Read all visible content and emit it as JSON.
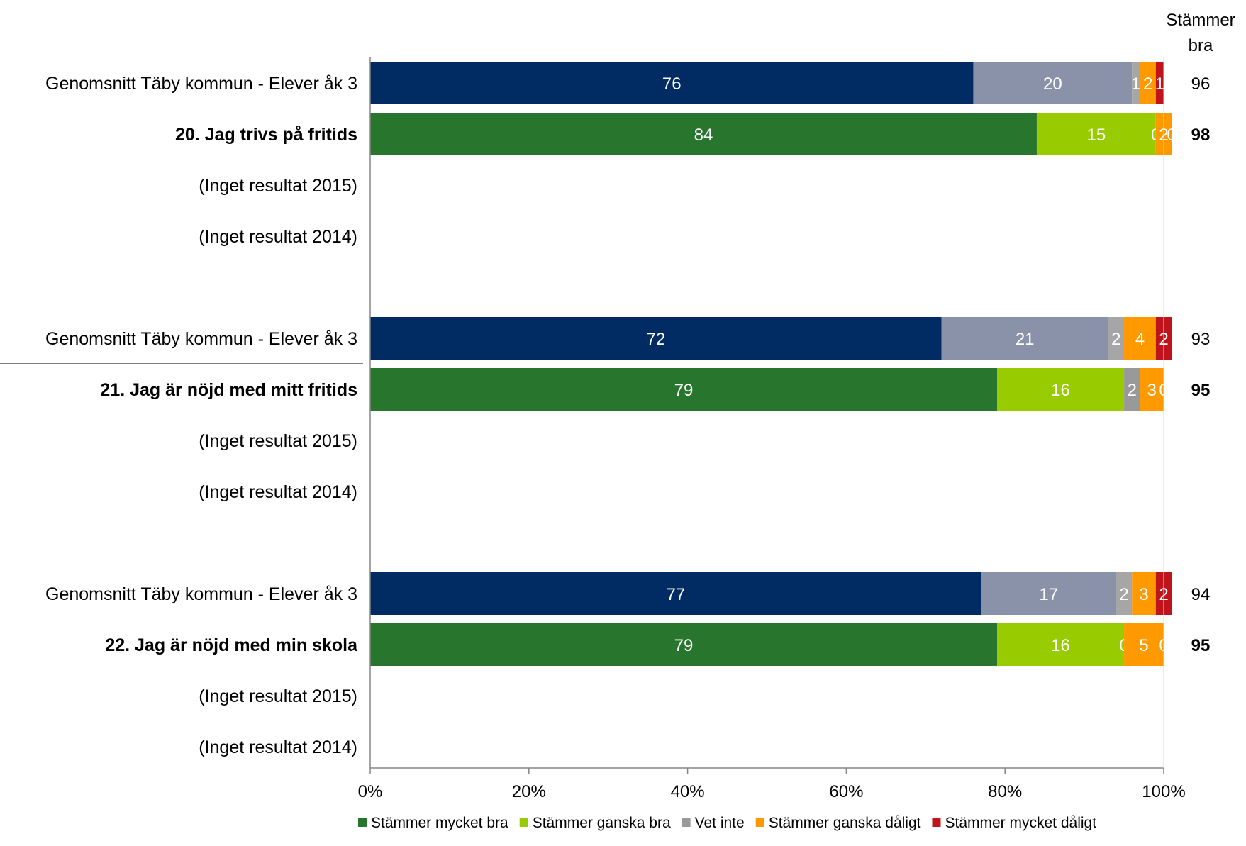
{
  "chart_data": {
    "type": "bar",
    "orientation": "horizontal",
    "stacked": true,
    "xlim": [
      0,
      100
    ],
    "x_ticks": [
      "0%",
      "20%",
      "40%",
      "60%",
      "80%",
      "100%"
    ],
    "sum_header": [
      "Stämmer",
      "bra"
    ],
    "legend": {
      "position": "bottom",
      "entries": [
        {
          "name": "Stämmer mycket bra",
          "color": "#28752d"
        },
        {
          "name": "Stämmer ganska bra",
          "color": "#99cc00"
        },
        {
          "name": "Vet inte",
          "color": "#999999"
        },
        {
          "name": "Stämmer ganska dåligt",
          "color": "#ff9900"
        },
        {
          "name": "Stämmer mycket dåligt",
          "color": "#c0141c"
        }
      ]
    },
    "groups": [
      {
        "rows": [
          {
            "label": "Genomsnitt Täby kommun - Elever åk 3",
            "bold": false,
            "style": "average",
            "values": [
              76,
              20,
              1,
              2,
              1
            ],
            "labels": [
              "76",
              "20",
              "1",
              "2",
              "1"
            ],
            "sum": "96"
          },
          {
            "label": "20. Jag trivs på fritids",
            "bold": true,
            "style": "school",
            "values": [
              84,
              15,
              0,
              2,
              0
            ],
            "labels": [
              "84",
              "15",
              "0",
              "2",
              "0"
            ],
            "sum": "98"
          },
          {
            "label": "(Inget resultat 2015)",
            "bold": false,
            "style": "none",
            "values": [],
            "labels": [],
            "sum": ""
          },
          {
            "label": "(Inget resultat 2014)",
            "bold": false,
            "style": "none",
            "values": [],
            "labels": [],
            "sum": ""
          }
        ]
      },
      {
        "rows": [
          {
            "label": "Genomsnitt Täby kommun - Elever åk 3",
            "bold": false,
            "style": "average",
            "values": [
              72,
              21,
              2,
              4,
              2
            ],
            "labels": [
              "72",
              "21",
              "2",
              "4",
              "2"
            ],
            "sum": "93"
          },
          {
            "label": "21. Jag är nöjd med mitt fritids",
            "bold": true,
            "style": "school",
            "values": [
              79,
              16,
              2,
              3,
              0
            ],
            "labels": [
              "79",
              "16",
              "2",
              "3",
              "0"
            ],
            "sum": "95"
          },
          {
            "label": "(Inget resultat 2015)",
            "bold": false,
            "style": "none",
            "values": [],
            "labels": [],
            "sum": ""
          },
          {
            "label": "(Inget resultat 2014)",
            "bold": false,
            "style": "none",
            "values": [],
            "labels": [],
            "sum": ""
          }
        ]
      },
      {
        "rows": [
          {
            "label": "Genomsnitt Täby kommun - Elever åk 3",
            "bold": false,
            "style": "average",
            "values": [
              77,
              17,
              2,
              3,
              2
            ],
            "labels": [
              "77",
              "17",
              "2",
              "3",
              "2"
            ],
            "sum": "94"
          },
          {
            "label": "22. Jag är nöjd med min skola",
            "bold": true,
            "style": "school",
            "values": [
              79,
              16,
              0,
              5,
              0
            ],
            "labels": [
              "79",
              "16",
              "0",
              "5",
              "0"
            ],
            "sum": "95"
          },
          {
            "label": "(Inget resultat 2015)",
            "bold": false,
            "style": "none",
            "values": [],
            "labels": [],
            "sum": ""
          },
          {
            "label": "(Inget resultat 2014)",
            "bold": false,
            "style": "none",
            "values": [],
            "labels": [],
            "sum": ""
          }
        ]
      }
    ],
    "colors": {
      "average": [
        "#002b63",
        "#8a92a9",
        "#a6a6a6",
        "#ff9900",
        "#c0141c"
      ],
      "school": [
        "#28752d",
        "#99cc00",
        "#999999",
        "#ff9900",
        "#c0141c"
      ]
    }
  }
}
